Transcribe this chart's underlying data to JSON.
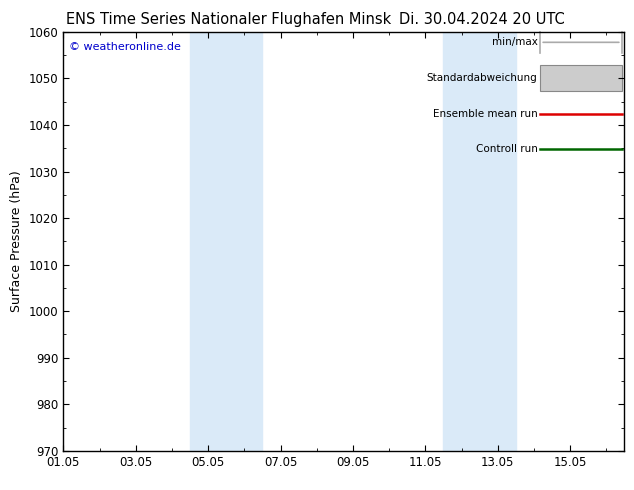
{
  "title_left": "ENS Time Series Nationaler Flughafen Minsk",
  "title_right": "Di. 30.04.2024 20 UTC",
  "ylabel": "Surface Pressure (hPa)",
  "ylim": [
    970,
    1060
  ],
  "yticks": [
    970,
    980,
    990,
    1000,
    1010,
    1020,
    1030,
    1040,
    1050,
    1060
  ],
  "xlim_start": 0.0,
  "xlim_end": 15.5,
  "xtick_positions": [
    0,
    2,
    4,
    6,
    8,
    10,
    12,
    14
  ],
  "xtick_labels": [
    "01.05",
    "03.05",
    "05.05",
    "07.05",
    "09.05",
    "11.05",
    "13.05",
    "15.05"
  ],
  "shaded_bands": [
    {
      "x_start": 3.5,
      "x_end": 5.5
    },
    {
      "x_start": 10.5,
      "x_end": 12.5
    }
  ],
  "shade_color": "#daeaf8",
  "copyright_text": "© weatheronline.de",
  "copyright_color": "#0000cc",
  "bg_color": "#ffffff",
  "border_color": "#000000",
  "title_fontsize": 10.5,
  "tick_fontsize": 8.5,
  "ylabel_fontsize": 9,
  "legend_labels": [
    "min/max",
    "Standardabweichung",
    "Ensemble mean run",
    "Controll run"
  ],
  "legend_colors": [
    "#aaaaaa",
    "#cccccc",
    "#dd0000",
    "#006600"
  ],
  "legend_styles": [
    "minmax",
    "fill",
    "line",
    "line"
  ]
}
